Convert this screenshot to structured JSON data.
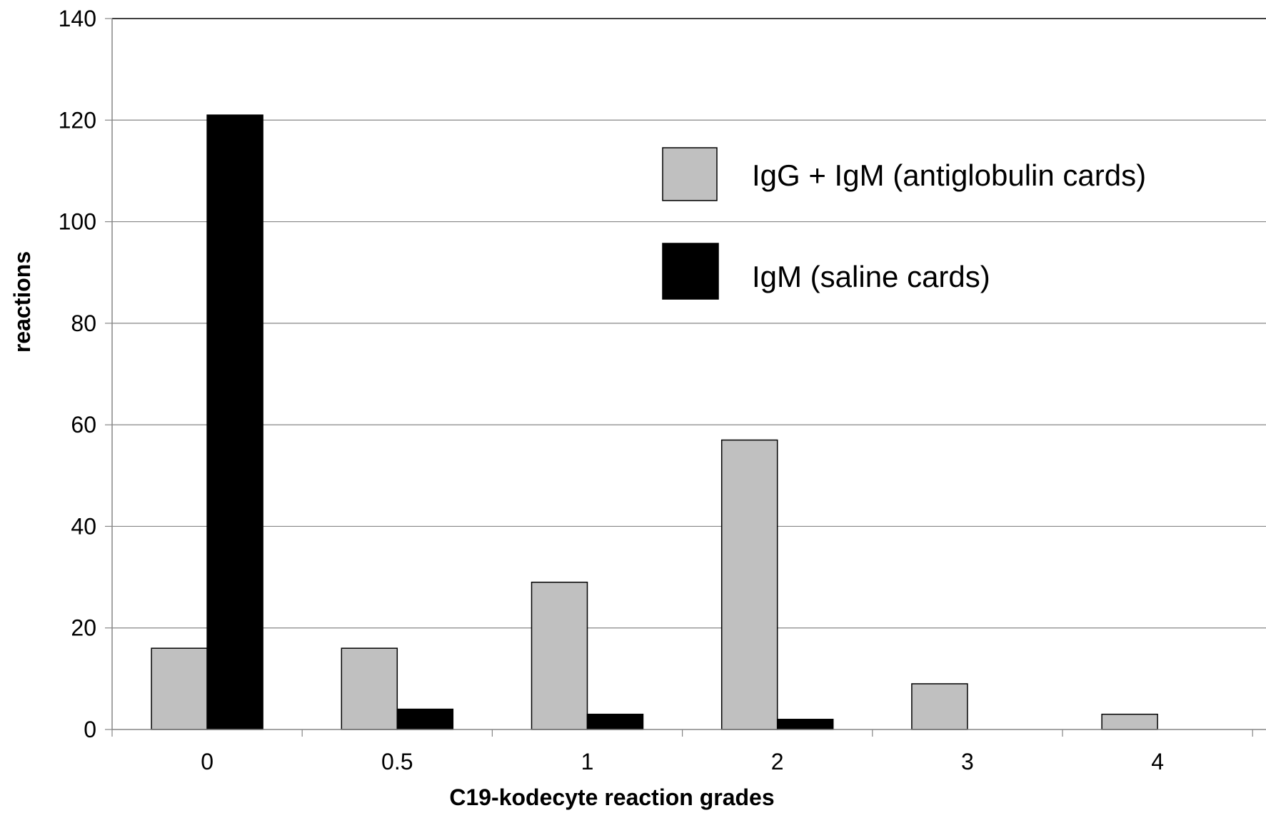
{
  "chart_data": {
    "type": "bar",
    "categories": [
      "0",
      "0.5",
      "1",
      "2",
      "3",
      "4"
    ],
    "series": [
      {
        "name": "IgG + IgM (antiglobulin cards)",
        "values": [
          16,
          16,
          29,
          57,
          9,
          3
        ],
        "color": "#c0c0c0"
      },
      {
        "name": "IgM (saline cards)",
        "values": [
          121,
          4,
          3,
          2,
          0,
          0
        ],
        "color": "#000000"
      }
    ],
    "title": "",
    "xlabel": "C19-kodecyte reaction grades",
    "ylabel": "reactions",
    "ylim": [
      0,
      140
    ],
    "yticks": [
      "0",
      "20",
      "40",
      "60",
      "80",
      "100",
      "120",
      "140"
    ],
    "grid": true,
    "legend_position": "top-right"
  }
}
